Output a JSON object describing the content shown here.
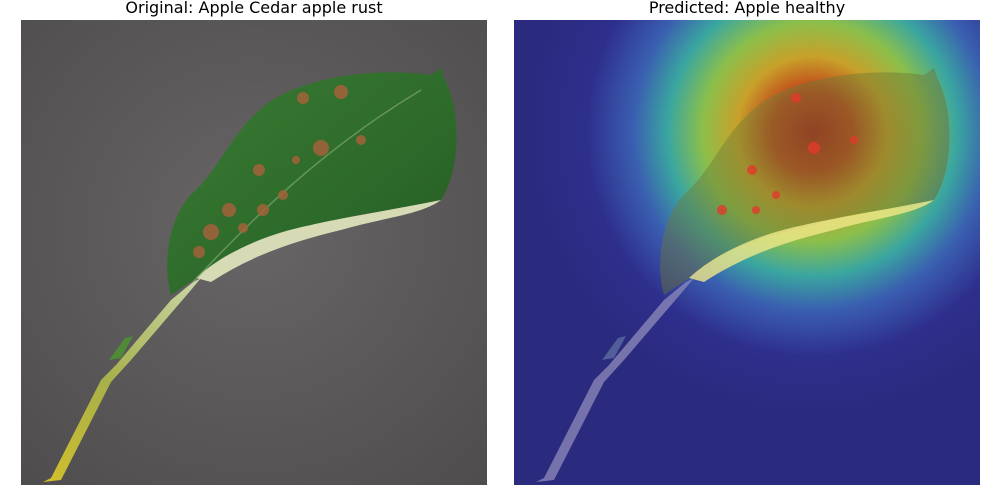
{
  "panels": [
    {
      "title": "Original: Apple Cedar apple rust",
      "image": "apple-leaf-photo"
    },
    {
      "title": "Predicted: Apple healthy",
      "image": "apple-leaf-heatmap-overlay"
    }
  ],
  "colors": {
    "background_surface": "#5a5858",
    "leaf_green": "#2f6e2c",
    "leaf_underside": "#d8dcb8",
    "rust_spot": "#a0603a",
    "stem_yellow": "#c8b830",
    "heatmap_cold": "#2a2a8a",
    "heatmap_hot": "#c01818"
  }
}
